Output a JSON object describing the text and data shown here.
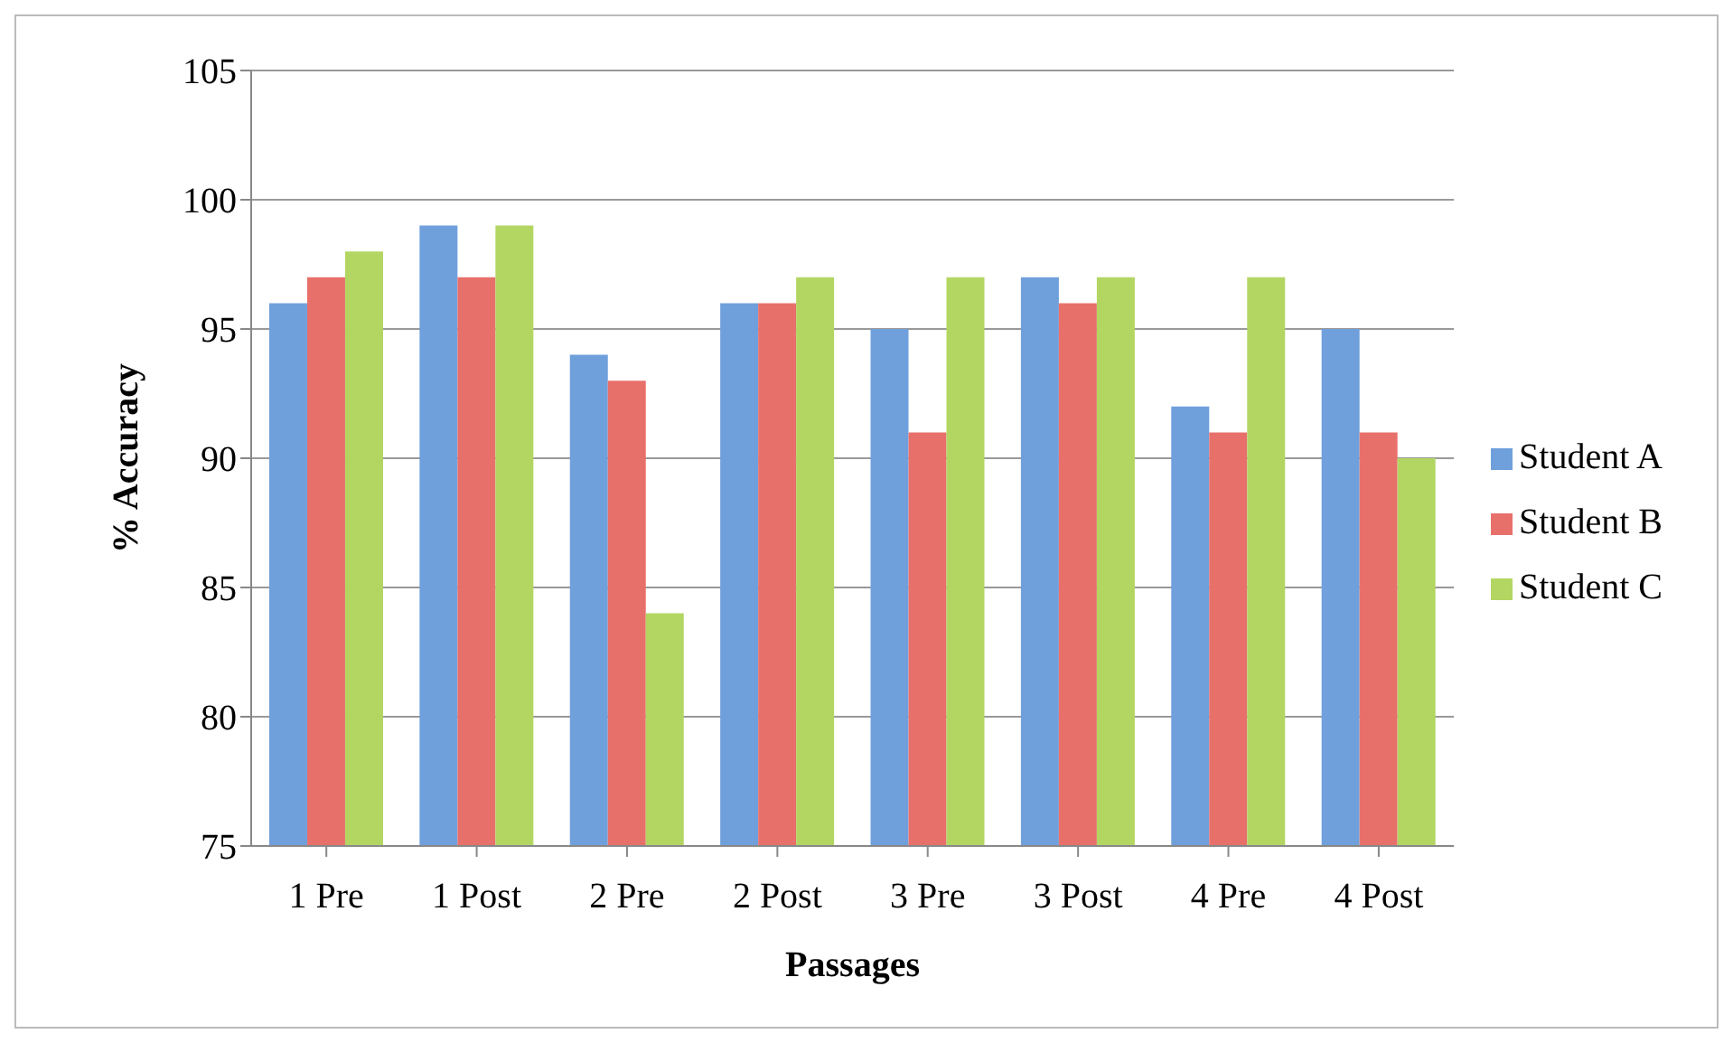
{
  "chart_data": {
    "type": "bar",
    "xlabel": "Passages",
    "ylabel": "% Accuracy",
    "categories": [
      "1 Pre",
      "1 Post",
      "2 Pre",
      "2 Post",
      "3 Pre",
      "3 Post",
      "4 Pre",
      "4 Post"
    ],
    "series": [
      {
        "name": "Student A",
        "color": "#6fa0dc",
        "values": [
          96,
          99,
          94,
          96,
          95,
          97,
          92,
          95
        ]
      },
      {
        "name": "Student B",
        "color": "#e8706b",
        "values": [
          97,
          97,
          93,
          96,
          91,
          96,
          91,
          91
        ]
      },
      {
        "name": "Student C",
        "color": "#b3d663",
        "values": [
          98,
          99,
          84,
          97,
          97,
          97,
          97,
          90
        ]
      }
    ],
    "ylim": [
      75,
      105
    ],
    "yticks": [
      75,
      80,
      85,
      90,
      95,
      100,
      105
    ],
    "grid": "y",
    "legend": "right"
  }
}
